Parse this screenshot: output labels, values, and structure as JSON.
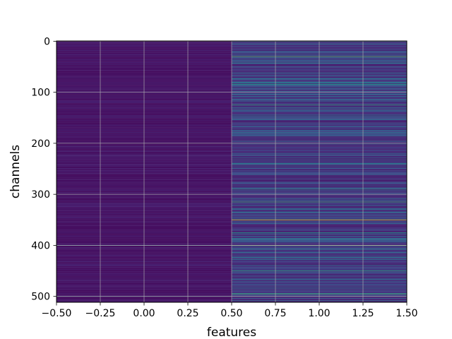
{
  "chart_data": {
    "type": "heatmap",
    "title": "",
    "xlabel": "features",
    "ylabel": "channels",
    "colormap": "viridis",
    "xlim": [
      -0.5,
      1.5
    ],
    "ylim": [
      511.5,
      -0.5
    ],
    "y_inverted": true,
    "grid": true,
    "n_rows": 512,
    "n_cols": 2,
    "column_centers": [
      0,
      1
    ],
    "x_ticks": [
      -0.5,
      -0.25,
      0.0,
      0.25,
      0.5,
      0.75,
      1.0,
      1.25,
      1.5
    ],
    "x_tick_labels": [
      "−0.50",
      "−0.25",
      "0.00",
      "0.25",
      "0.50",
      "0.75",
      "1.00",
      "1.25",
      "1.50"
    ],
    "y_ticks": [
      0,
      100,
      200,
      300,
      400,
      500
    ],
    "y_tick_labels": [
      "0",
      "100",
      "200",
      "300",
      "400",
      "500"
    ],
    "column_0_summary": "mostly near minimum (dark purple) with faint faint variation; a few brighter rows near 400 and 500",
    "column_1_summary": "varied blue/teal values; bright (green/yellow) rows near 30, 85, 125, 200, 240, 290, 315, 350, 375, 400, 450, 495",
    "highlight_rows": [
      {
        "row": 30,
        "col": 1,
        "value": 0.72
      },
      {
        "row": 85,
        "col": 1,
        "value": 0.55
      },
      {
        "row": 125,
        "col": 1,
        "value": 0.62
      },
      {
        "row": 200,
        "col": 1,
        "value": 0.45
      },
      {
        "row": 240,
        "col": 1,
        "value": 0.5
      },
      {
        "row": 290,
        "col": 1,
        "value": 0.52
      },
      {
        "row": 315,
        "col": 1,
        "value": 0.65
      },
      {
        "row": 350,
        "col": 1,
        "value": 0.95
      },
      {
        "row": 375,
        "col": 1,
        "value": 0.55
      },
      {
        "row": 400,
        "col": 1,
        "value": 0.8
      },
      {
        "row": 450,
        "col": 1,
        "value": 0.6
      },
      {
        "row": 495,
        "col": 1,
        "value": 0.7
      },
      {
        "row": 400,
        "col": 0,
        "value": 0.35
      },
      {
        "row": 500,
        "col": 0,
        "value": 0.3
      }
    ]
  }
}
